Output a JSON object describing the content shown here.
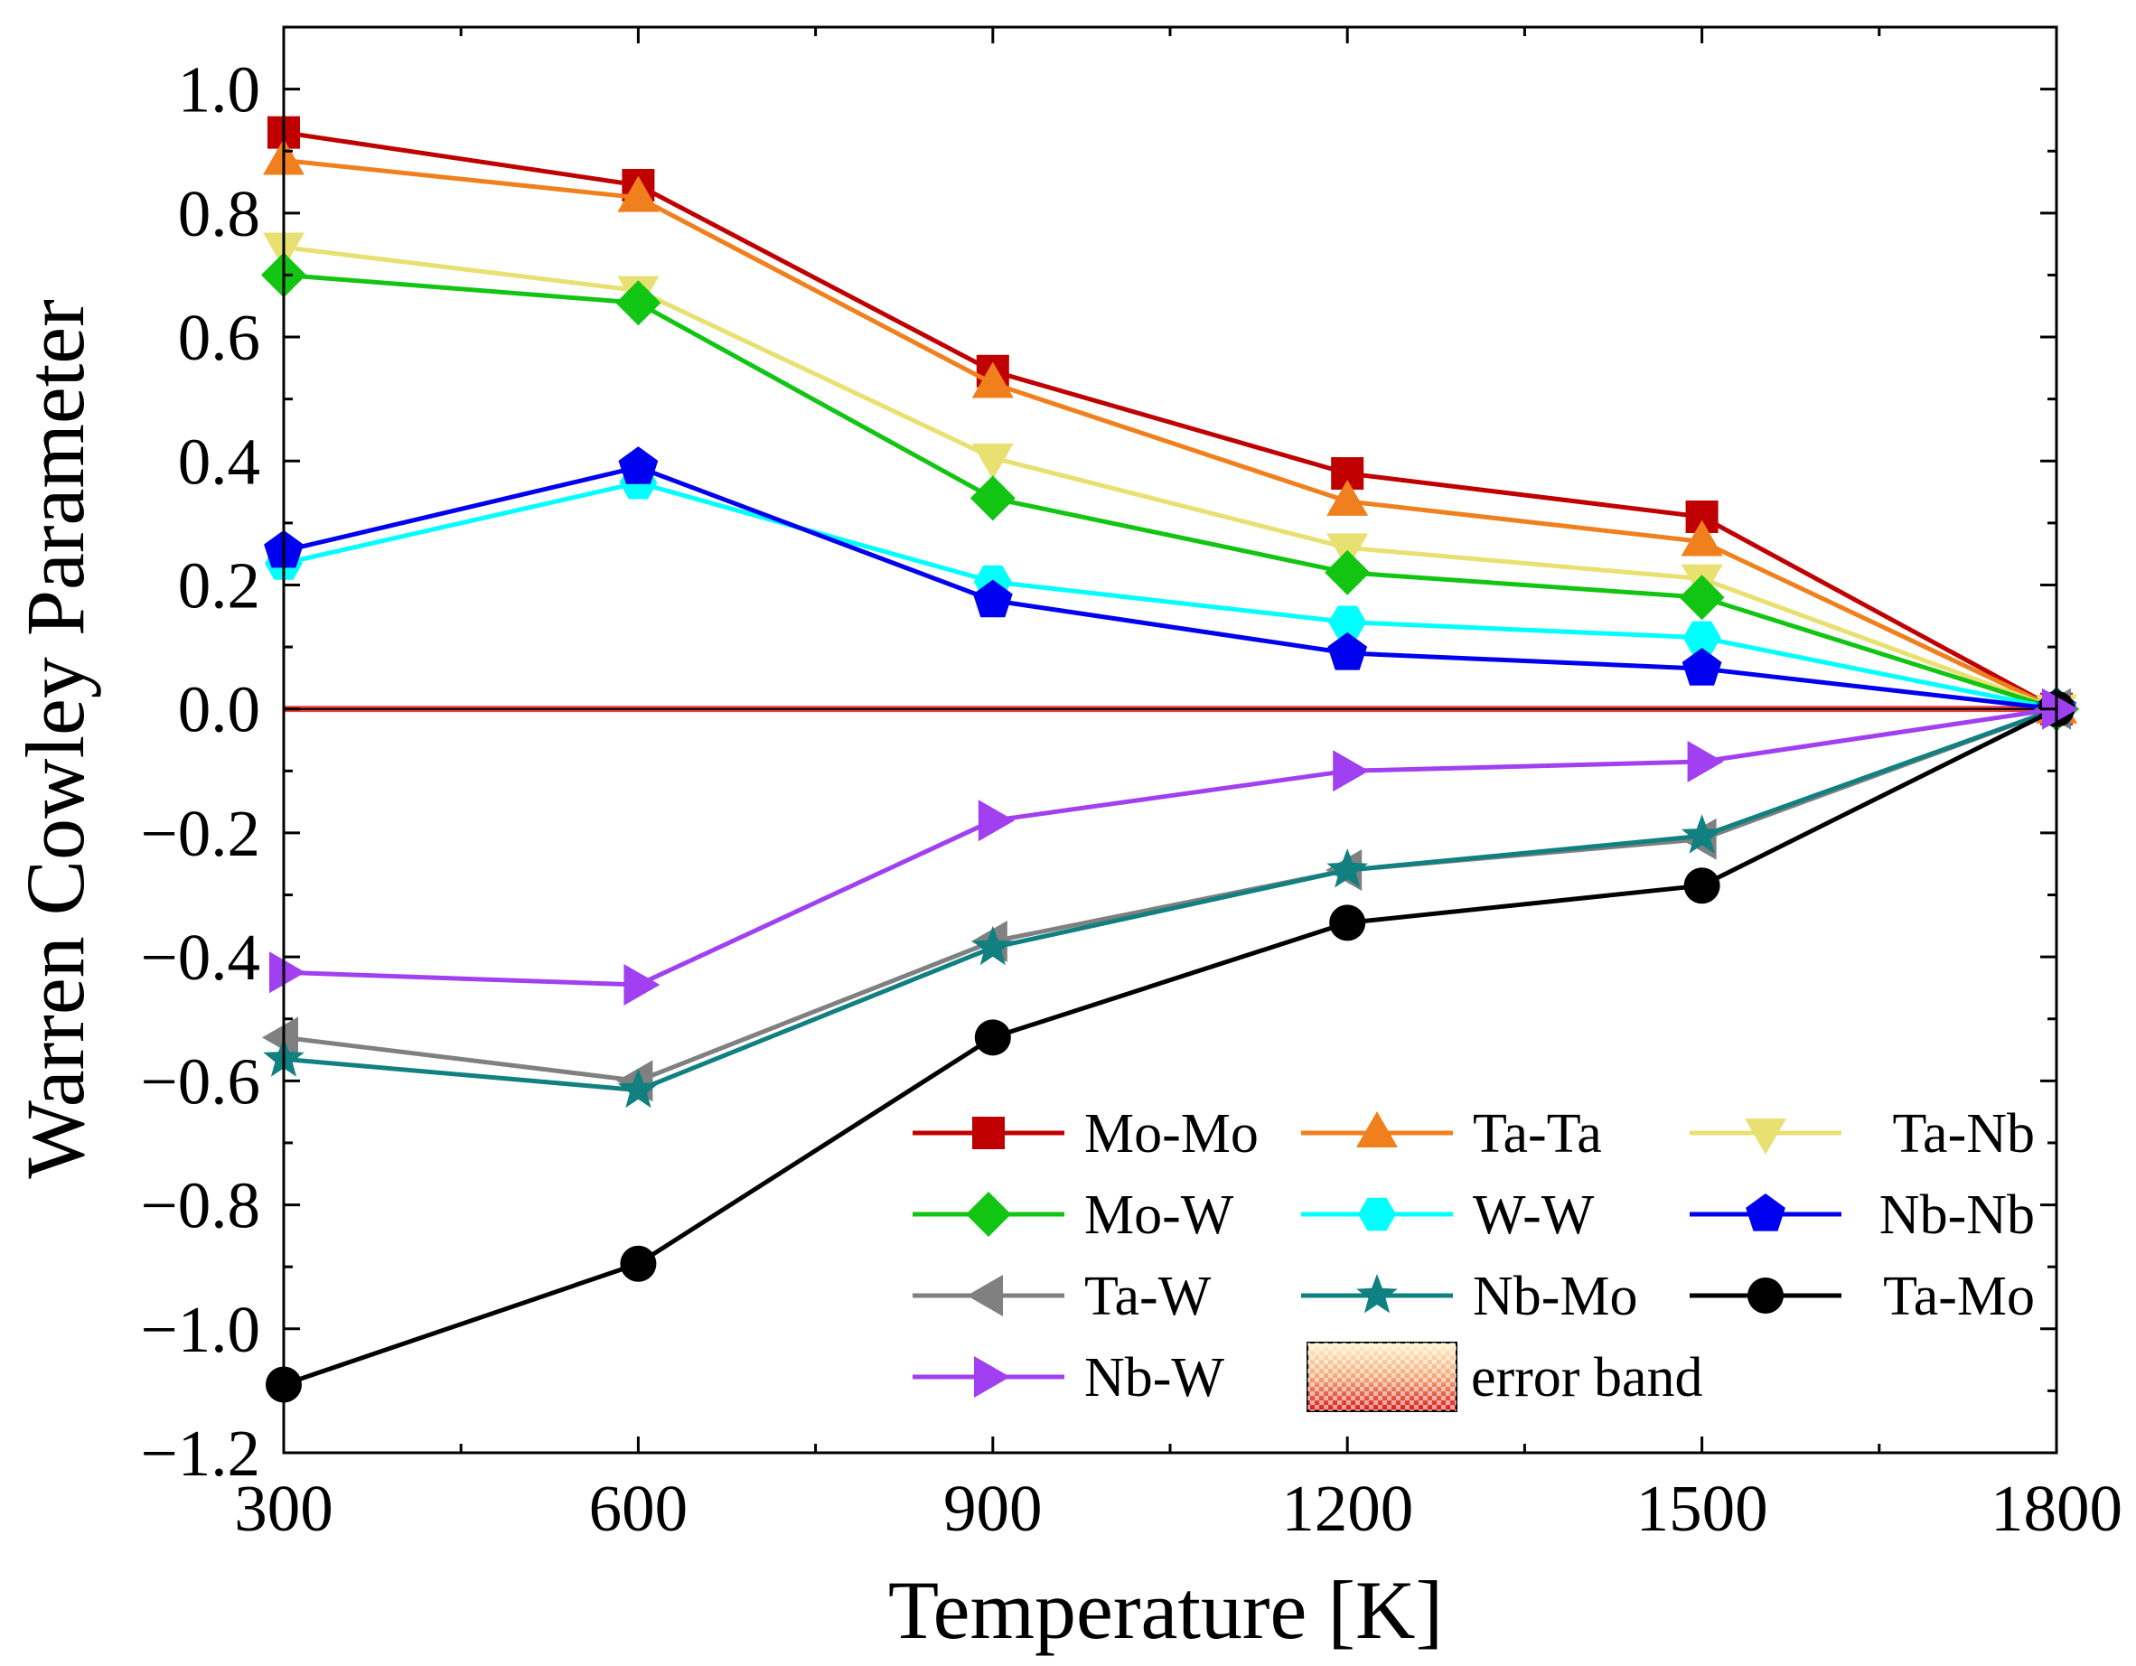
{
  "chart_data": {
    "type": "line",
    "title": "",
    "xlabel": "Temperature [K]",
    "ylabel": "Warren Cowley Parameter",
    "x": [
      300,
      600,
      900,
      1200,
      1500,
      1800
    ],
    "xlim": [
      300,
      1800
    ],
    "ylim": [
      -1.2,
      1.1
    ],
    "x_ticks": [
      "300",
      "600",
      "900",
      "1200",
      "1500",
      "1800"
    ],
    "y_ticks": [
      "−1.2",
      "−1.0",
      "−0.8",
      "−0.6",
      "−0.4",
      "−0.2",
      "0.0",
      "0.2",
      "0.4",
      "0.6",
      "0.8",
      "1.0"
    ],
    "y_tick_values": [
      -1.2,
      -1.0,
      -0.8,
      -0.6,
      -0.4,
      -0.2,
      0.0,
      0.2,
      0.4,
      0.6,
      0.8,
      1.0
    ],
    "grid": false,
    "legend_position": "bottom-right",
    "series": [
      {
        "name": "Mo-Mo",
        "color": "#c00000",
        "marker": "square",
        "values": [
          0.93,
          0.845,
          0.545,
          0.38,
          0.31,
          0.0
        ]
      },
      {
        "name": "Ta-Ta",
        "color": "#f07f1e",
        "marker": "triangle-up",
        "values": [
          0.885,
          0.825,
          0.525,
          0.335,
          0.27,
          0.0
        ]
      },
      {
        "name": "Ta-Nb",
        "color": "#e8e070",
        "marker": "triangle-down",
        "values": [
          0.745,
          0.675,
          0.405,
          0.26,
          0.21,
          0.0
        ]
      },
      {
        "name": "Mo-W",
        "color": "#12c512",
        "marker": "diamond",
        "values": [
          0.7,
          0.655,
          0.34,
          0.22,
          0.18,
          0.0
        ]
      },
      {
        "name": "W-W",
        "color": "#00ffff",
        "marker": "hexagon",
        "values": [
          0.235,
          0.365,
          0.205,
          0.14,
          0.115,
          0.0
        ]
      },
      {
        "name": "Nb-Nb",
        "color": "#0000f0",
        "marker": "pentagon",
        "values": [
          0.255,
          0.39,
          0.175,
          0.09,
          0.065,
          0.0
        ]
      },
      {
        "name": "Ta-W",
        "color": "#808080",
        "marker": "triangle-left",
        "values": [
          -0.53,
          -0.6,
          -0.375,
          -0.26,
          -0.21,
          0.0
        ]
      },
      {
        "name": "Nb-Mo",
        "color": "#108080",
        "marker": "star",
        "values": [
          -0.565,
          -0.615,
          -0.385,
          -0.26,
          -0.205,
          0.0
        ]
      },
      {
        "name": "Ta-Mo",
        "color": "#000000",
        "marker": "circle",
        "values": [
          -1.09,
          -0.895,
          -0.53,
          -0.345,
          -0.285,
          0.0
        ]
      },
      {
        "name": "Nb-W",
        "color": "#a040f0",
        "marker": "triangle-right",
        "values": [
          -0.425,
          -0.445,
          -0.18,
          -0.1,
          -0.085,
          0.0
        ]
      }
    ],
    "error_band": {
      "label": "error band",
      "range": [
        -0.005,
        0.005
      ],
      "color": "#e02020"
    }
  }
}
